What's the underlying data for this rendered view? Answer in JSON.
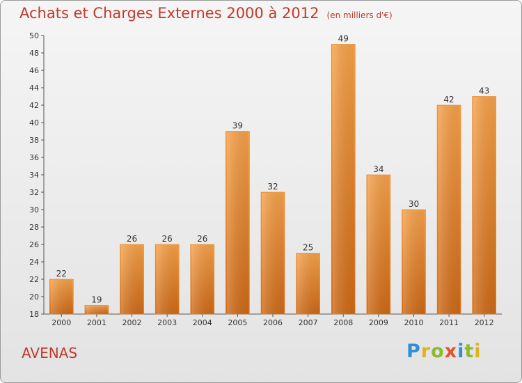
{
  "header": {
    "title": "Achats et Charges Externes 2000 à 2012",
    "unit": "(en milliers d'€)"
  },
  "footer": {
    "commune": "AVENAS",
    "logo_letters": [
      {
        "ch": "P",
        "color": "#2f8fd1"
      },
      {
        "ch": "r",
        "color": "#e0b21b"
      },
      {
        "ch": "o",
        "color": "#8dbb2f"
      },
      {
        "ch": "x",
        "color": "#e2532d"
      },
      {
        "ch": "i",
        "color": "#2f8fd1"
      },
      {
        "ch": "t",
        "color": "#8dbb2f"
      },
      {
        "ch": "i",
        "color": "#e0b21b"
      }
    ]
  },
  "colors": {
    "title": "#c0392b",
    "bar_light": "#f7a24a",
    "bar_dark": "#cf6a17"
  },
  "chart_data": {
    "type": "bar",
    "categories": [
      "2000",
      "2001",
      "2002",
      "2003",
      "2004",
      "2005",
      "2006",
      "2007",
      "2008",
      "2009",
      "2010",
      "2011",
      "2012"
    ],
    "values": [
      22,
      19,
      26,
      26,
      26,
      39,
      32,
      25,
      49,
      34,
      30,
      42,
      43
    ],
    "ylim": [
      18,
      50
    ],
    "yticks": [
      18,
      20,
      22,
      24,
      26,
      28,
      30,
      32,
      34,
      36,
      38,
      40,
      42,
      44,
      46,
      48,
      50
    ],
    "grid": false,
    "data_labels": true
  }
}
